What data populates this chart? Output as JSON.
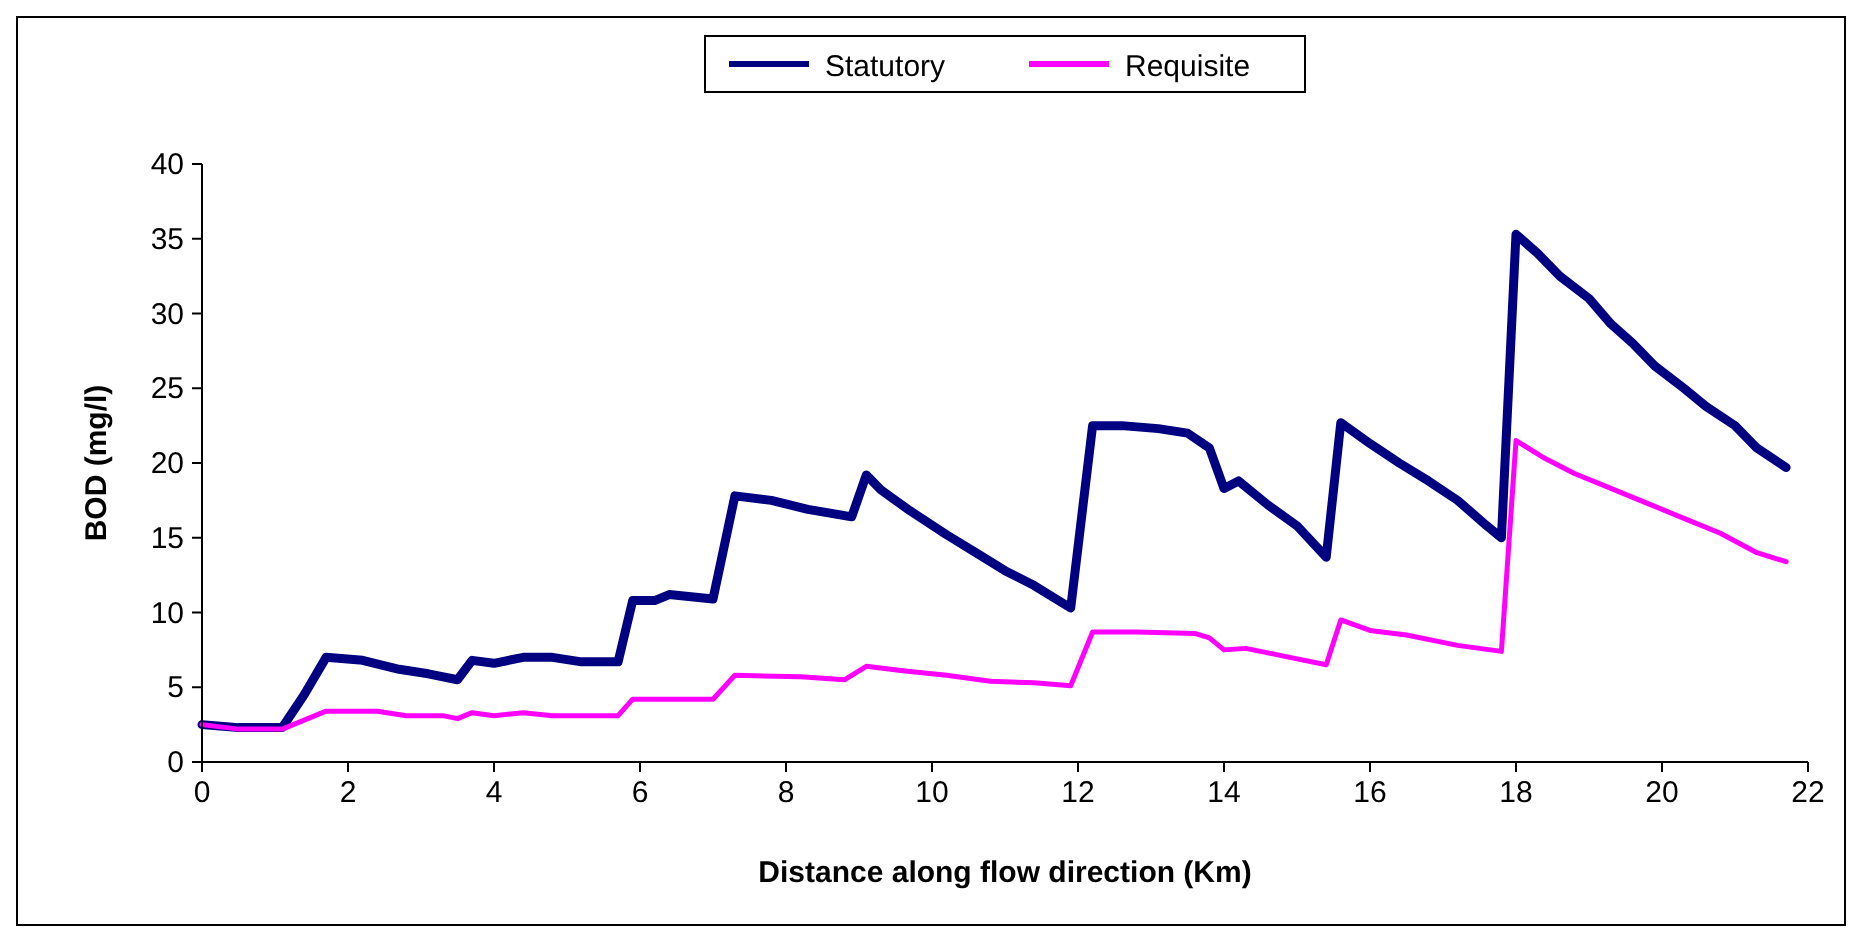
{
  "chart_data": {
    "type": "line",
    "xlabel": "Distance along flow direction (Km)",
    "ylabel": "BOD (mg/l)",
    "xlim": [
      0,
      22
    ],
    "xticks": [
      0,
      2,
      4,
      6,
      8,
      10,
      12,
      14,
      16,
      18,
      20,
      22
    ],
    "ylim": [
      0,
      40
    ],
    "yticks": [
      0,
      5,
      10,
      15,
      20,
      25,
      30,
      35,
      40
    ],
    "grid": false,
    "legend": "top",
    "line_style": "solid",
    "series": [
      {
        "name": "Statutory",
        "color": "#000080",
        "x": [
          0,
          0.5,
          1.1,
          1.4,
          1.7,
          2.2,
          2.7,
          3.1,
          3.5,
          3.7,
          4.0,
          4.4,
          4.8,
          5.2,
          5.7,
          5.9,
          6.2,
          6.4,
          7.0,
          7.3,
          7.8,
          8.3,
          8.9,
          9.1,
          9.3,
          9.7,
          10.2,
          10.6,
          11.0,
          11.4,
          11.9,
          12.2,
          12.6,
          13.1,
          13.5,
          13.8,
          14.0,
          14.2,
          14.6,
          15.0,
          15.4,
          15.6,
          16.0,
          16.4,
          16.8,
          17.2,
          17.6,
          17.8,
          18.0,
          18.3,
          18.6,
          19.0,
          19.3,
          19.6,
          19.9,
          20.3,
          20.6,
          21.0,
          21.3,
          21.7
        ],
        "values": [
          2.5,
          2.3,
          2.3,
          4.5,
          7.0,
          6.8,
          6.2,
          5.9,
          5.5,
          6.8,
          6.6,
          7.0,
          7.0,
          6.7,
          6.7,
          10.8,
          10.8,
          11.2,
          10.9,
          17.8,
          17.5,
          16.9,
          16.4,
          19.2,
          18.2,
          16.8,
          15.2,
          14.0,
          12.8,
          11.8,
          10.3,
          22.5,
          22.5,
          22.3,
          22.0,
          21.0,
          18.3,
          18.8,
          17.2,
          15.8,
          13.7,
          22.7,
          21.3,
          20.0,
          18.8,
          17.5,
          15.8,
          15.0,
          35.3,
          34.0,
          32.5,
          31.0,
          29.3,
          28.0,
          26.5,
          25.0,
          23.8,
          22.5,
          21.0,
          19.7
        ]
      },
      {
        "name": "Requisite",
        "color": "#ff00ff",
        "x": [
          0,
          0.5,
          1.1,
          1.5,
          1.7,
          2.4,
          2.8,
          3.3,
          3.5,
          3.7,
          4.0,
          4.4,
          4.8,
          5.7,
          5.9,
          6.5,
          7.0,
          7.3,
          8.2,
          8.8,
          9.1,
          9.6,
          10.2,
          10.8,
          11.4,
          11.9,
          12.2,
          12.8,
          13.6,
          13.8,
          14.0,
          14.3,
          14.8,
          15.4,
          15.6,
          16.0,
          16.5,
          17.2,
          17.8,
          18.0,
          18.4,
          18.8,
          19.3,
          19.8,
          20.3,
          20.8,
          21.3,
          21.7
        ],
        "values": [
          2.5,
          2.2,
          2.2,
          3.0,
          3.4,
          3.4,
          3.1,
          3.1,
          2.9,
          3.3,
          3.1,
          3.3,
          3.1,
          3.1,
          4.2,
          4.2,
          4.2,
          5.8,
          5.7,
          5.5,
          6.4,
          6.1,
          5.8,
          5.4,
          5.3,
          5.1,
          8.7,
          8.7,
          8.6,
          8.3,
          7.5,
          7.6,
          7.1,
          6.5,
          9.5,
          8.8,
          8.5,
          7.8,
          7.4,
          21.5,
          20.3,
          19.3,
          18.3,
          17.3,
          16.3,
          15.3,
          14.0,
          13.4
        ]
      }
    ]
  }
}
